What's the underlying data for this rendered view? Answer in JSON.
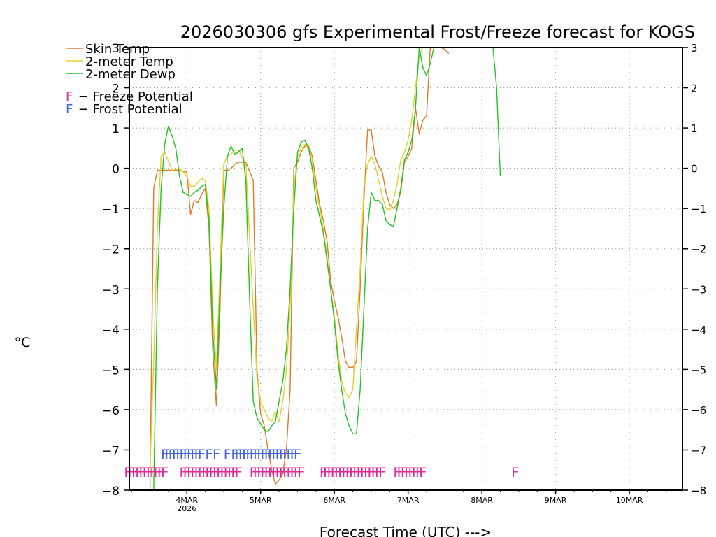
{
  "chart_data": {
    "type": "line",
    "title": "2026030306 gfs Experimental Frost/Freeze forecast for KOGS",
    "xlabel": "Forecast Time (UTC) --->",
    "ylabel": "°C",
    "ylim": [
      -8,
      3
    ],
    "xlim": [
      -0.78,
      6.72
    ],
    "grid": true,
    "yticks": [
      -8,
      -7,
      -6,
      -5,
      -4,
      -3,
      -2,
      -1,
      0,
      1,
      2,
      3
    ],
    "ytick_labels": [
      "−8",
      "−7",
      "−6",
      "−5",
      "−4",
      "−3",
      "−2",
      "−1",
      "0",
      "1",
      "2",
      "3"
    ],
    "right_ytick_labels": [
      "−8",
      "−7",
      "−6",
      "−5",
      "−4",
      "−3",
      "−2",
      "−1",
      "0",
      "1",
      "2",
      "3"
    ],
    "xticks": [
      0,
      1,
      2,
      3,
      4,
      5,
      6
    ],
    "xtick_labels": [
      "4MAR",
      "5MAR",
      "6MAR",
      "7MAR",
      "8MAR",
      "9MAR",
      "10MAR"
    ],
    "xtick_year": "2026",
    "series": [
      {
        "name": "Skin Temp",
        "color": "#e07a28",
        "x": [
          -0.5,
          -0.45,
          -0.4,
          -0.35,
          -0.3,
          -0.2,
          -0.1,
          0.0,
          0.05,
          0.1,
          0.15,
          0.2,
          0.25,
          0.3,
          0.35,
          0.4,
          0.45,
          0.5,
          0.55,
          0.6,
          0.65,
          0.7,
          0.8,
          0.9,
          0.95,
          1.0,
          1.05,
          1.1,
          1.15,
          1.2,
          1.25,
          1.3,
          1.35,
          1.4,
          1.45,
          1.5,
          1.55,
          1.6,
          1.65,
          1.7,
          1.75,
          1.8,
          1.85,
          1.9,
          1.95,
          2.0,
          2.05,
          2.1,
          2.15,
          2.2,
          2.25,
          2.3,
          2.35,
          2.4,
          2.45,
          2.5,
          2.55,
          2.6,
          2.65,
          2.7,
          2.75,
          2.8,
          2.85,
          2.9,
          2.95,
          3.0,
          3.05,
          3.1,
          3.15,
          3.2,
          3.25,
          3.3,
          3.35,
          3.4,
          3.45,
          3.5,
          3.55
        ],
        "y": [
          -8,
          -0.5,
          -0.05,
          -0.05,
          -0.05,
          -0.05,
          -0.05,
          -0.1,
          -1.15,
          -0.8,
          -0.85,
          -0.65,
          -0.5,
          -1.5,
          -4.5,
          -5.9,
          -3.5,
          -0.05,
          -0.05,
          0.0,
          0.1,
          0.15,
          0.15,
          -0.3,
          -5.0,
          -6.1,
          -6.4,
          -7.0,
          -7.5,
          -7.85,
          -7.75,
          -7.6,
          -7.0,
          -5.5,
          0.0,
          0.15,
          0.4,
          0.55,
          0.55,
          0.3,
          -0.3,
          -0.9,
          -1.3,
          -1.8,
          -2.8,
          -3.3,
          -3.7,
          -4.2,
          -4.8,
          -4.95,
          -4.95,
          -4.8,
          -3.0,
          -0.8,
          0.95,
          0.95,
          0.3,
          0.05,
          -0.1,
          -0.6,
          -0.9,
          -1.0,
          -0.9,
          -0.6,
          0.15,
          0.3,
          0.5,
          1.5,
          0.85,
          1.2,
          1.3,
          3.0,
          3.0,
          3.0,
          3.0,
          2.95,
          2.85
        ]
      },
      {
        "name": "2-meter Temp",
        "color": "#e6d02a",
        "x": [
          -0.5,
          -0.45,
          -0.4,
          -0.35,
          -0.3,
          -0.2,
          -0.1,
          0.0,
          0.05,
          0.1,
          0.15,
          0.2,
          0.25,
          0.3,
          0.35,
          0.4,
          0.45,
          0.5,
          0.55,
          0.6,
          0.65,
          0.7,
          0.8,
          0.9,
          0.95,
          1.0,
          1.05,
          1.1,
          1.15,
          1.2,
          1.25,
          1.3,
          1.35,
          1.4,
          1.45,
          1.5,
          1.55,
          1.6,
          1.65,
          1.7,
          1.75,
          1.8,
          1.85,
          1.9,
          1.95,
          2.0,
          2.05,
          2.1,
          2.15,
          2.2,
          2.25,
          2.3,
          2.35,
          2.4,
          2.45,
          2.5,
          2.55,
          2.6,
          2.65,
          2.7,
          2.75,
          2.8,
          2.85,
          2.9,
          2.95,
          3.0,
          3.05,
          3.1,
          3.15,
          3.2,
          3.25,
          3.3,
          3.35,
          3.4,
          3.45
        ],
        "y": [
          -7.5,
          -4.8,
          -1.5,
          0.3,
          0.4,
          -0.05,
          0.0,
          -0.2,
          -0.45,
          -0.45,
          -0.35,
          -0.25,
          -0.3,
          -1.0,
          -3.5,
          -5.0,
          -2.5,
          0.1,
          0.3,
          0.35,
          0.45,
          0.45,
          0.1,
          -3.5,
          -5.2,
          -5.8,
          -6.0,
          -6.2,
          -6.3,
          -6.05,
          -6.3,
          -5.8,
          -5.0,
          -3.5,
          -0.5,
          0.3,
          0.5,
          0.6,
          0.5,
          0.2,
          -0.5,
          -1.0,
          -1.5,
          -2.2,
          -3.0,
          -3.7,
          -4.6,
          -5.3,
          -5.6,
          -5.7,
          -5.5,
          -4.0,
          -2.5,
          -0.5,
          0.1,
          0.3,
          0.1,
          -0.3,
          -0.7,
          -1.0,
          -1.05,
          -0.8,
          -0.4,
          0.2,
          0.4,
          0.7,
          1.2,
          2.0,
          2.8,
          3.0,
          3.0,
          3.0,
          3.0,
          3.0,
          3.0
        ]
      },
      {
        "name": "2-meter Dewp",
        "color": "#22c424",
        "x": [
          -0.45,
          -0.4,
          -0.35,
          -0.3,
          -0.25,
          -0.2,
          -0.15,
          -0.1,
          -0.05,
          0.0,
          0.05,
          0.1,
          0.15,
          0.2,
          0.25,
          0.3,
          0.35,
          0.4,
          0.45,
          0.5,
          0.55,
          0.6,
          0.65,
          0.7,
          0.75,
          0.8,
          0.85,
          0.9,
          0.95,
          1.0,
          1.05,
          1.1,
          1.15,
          1.2,
          1.25,
          1.3,
          1.35,
          1.4,
          1.45,
          1.5,
          1.55,
          1.6,
          1.65,
          1.7,
          1.75,
          1.8,
          1.85,
          1.9,
          1.95,
          2.0,
          2.05,
          2.1,
          2.15,
          2.2,
          2.25,
          2.3,
          2.35,
          2.4,
          2.45,
          2.5,
          2.55,
          2.6,
          2.65,
          2.7,
          2.75,
          2.8,
          2.85,
          2.9,
          2.95,
          3.0,
          3.05,
          3.1,
          3.15,
          3.2,
          3.25,
          3.3,
          3.35,
          3.4,
          3.45,
          3.5,
          3.55,
          3.6,
          3.65,
          3.7,
          3.75,
          3.8,
          3.85,
          3.9,
          3.95,
          4.0,
          4.05,
          4.1,
          4.15,
          4.2,
          4.25
        ],
        "y": [
          -8,
          -3.0,
          -0.5,
          0.6,
          1.05,
          0.8,
          0.5,
          -0.2,
          -0.6,
          -0.65,
          -0.7,
          -0.6,
          -0.55,
          -0.45,
          -0.4,
          -1.3,
          -4.0,
          -5.5,
          -3.0,
          -1.0,
          0.3,
          0.55,
          0.35,
          0.4,
          0.5,
          -0.3,
          -3.2,
          -5.8,
          -6.2,
          -6.35,
          -6.5,
          -6.55,
          -6.4,
          -6.3,
          -5.8,
          -5.3,
          -4.5,
          -3.0,
          -1.0,
          0.4,
          0.65,
          0.7,
          0.5,
          0.0,
          -0.8,
          -1.2,
          -1.6,
          -2.3,
          -3.0,
          -3.8,
          -4.8,
          -5.5,
          -6.1,
          -6.4,
          -6.6,
          -6.6,
          -5.5,
          -3.5,
          -1.5,
          -0.6,
          -0.8,
          -0.8,
          -0.9,
          -1.3,
          -1.4,
          -1.45,
          -1.0,
          -0.5,
          0.2,
          0.4,
          0.7,
          1.5,
          3.0,
          2.5,
          2.3,
          2.6,
          3.0,
          3.0,
          3.0,
          3.0,
          3.0,
          3.0,
          3.0,
          3.0,
          3.0,
          3.0,
          3.0,
          3.0,
          3.0,
          3.0,
          3.0,
          3.0,
          3.0,
          2.0,
          -0.2
        ]
      }
    ],
    "legend": {
      "placement": "top-left",
      "entries": [
        {
          "name": "Skin Temp",
          "color": "#e07a28"
        },
        {
          "name": "2-meter Temp",
          "color": "#e6d02a"
        },
        {
          "name": "2-meter Dewp",
          "color": "#22c424"
        }
      ],
      "potential": [
        {
          "glyph": "F",
          "glyph_color": "#e0289a",
          "label": " − Freeze Potential"
        },
        {
          "glyph": "F",
          "glyph_color": "#4466dd",
          "label": " − Frost Potential"
        }
      ]
    },
    "frost_flags": {
      "color": "#4466dd",
      "y": -7.1,
      "x": [
        -0.3,
        -0.25,
        -0.2,
        -0.15,
        -0.1,
        -0.05,
        0.0,
        0.05,
        0.1,
        0.15,
        0.2,
        0.3,
        0.4,
        0.55,
        0.65,
        0.7,
        0.75,
        0.8,
        0.85,
        0.9,
        0.95,
        1.0,
        1.05,
        1.1,
        1.15,
        1.2,
        1.25,
        1.3,
        1.35,
        1.4,
        1.45,
        1.5
      ]
    },
    "freeze_flags": {
      "color": "#e0289a",
      "y": -7.55,
      "x": [
        -0.8,
        -0.75,
        -0.7,
        -0.65,
        -0.6,
        -0.55,
        -0.5,
        -0.45,
        -0.4,
        -0.35,
        -0.3,
        -0.05,
        0.0,
        0.05,
        0.1,
        0.15,
        0.2,
        0.25,
        0.3,
        0.35,
        0.4,
        0.45,
        0.5,
        0.55,
        0.6,
        0.65,
        0.7,
        0.9,
        0.95,
        1.0,
        1.05,
        1.1,
        1.15,
        1.2,
        1.25,
        1.3,
        1.35,
        1.4,
        1.45,
        1.5,
        1.55,
        1.85,
        1.9,
        1.95,
        2.0,
        2.05,
        2.1,
        2.15,
        2.2,
        2.25,
        2.3,
        2.35,
        2.4,
        2.45,
        2.5,
        2.55,
        2.6,
        2.65,
        2.85,
        2.9,
        2.95,
        3.0,
        3.05,
        3.1,
        3.15,
        3.2,
        4.45
      ]
    }
  }
}
